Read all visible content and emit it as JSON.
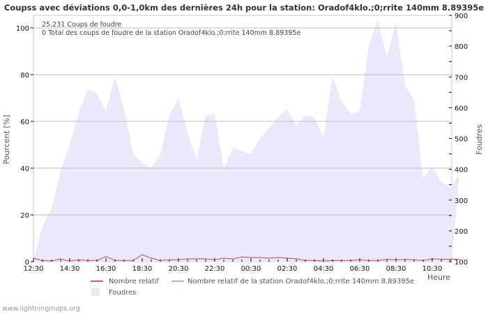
{
  "title": "Coupss avec déviations 0,0-1,0km des dernières 24h pour la station: Oradof4klo.;0;rrite 140mm 8.89395e",
  "info": {
    "line1": "25.231  Coups de foudre",
    "line2": "0 Total des coups de foudre de la station Oradof4klo.;0;rrite 140mm 8.89395e"
  },
  "axes": {
    "left_label": "Pourcent   [%]",
    "right_label": "Foudres",
    "x_label": "Heure",
    "left_ticks": [
      "0",
      "20",
      "40",
      "60",
      "80",
      "100"
    ],
    "right_ticks": [
      "100",
      "200",
      "300",
      "400",
      "500",
      "600",
      "700",
      "800",
      "900"
    ],
    "x_ticks": [
      "12:30",
      "14:30",
      "16:30",
      "18:30",
      "20:30",
      "22:30",
      "00:30",
      "02:30",
      "04:30",
      "06:30",
      "08:30",
      "10:30"
    ]
  },
  "legend": {
    "item1": "Nombre relatif",
    "item2": "Nombre relatif de la station Oradof4klo.;0;rrite 140mm 8.89395e",
    "item3": "Foudres"
  },
  "colors": {
    "area_fill": "#e9e9fb",
    "line_relative": "#d9566a",
    "line_station": "#f0a0a8",
    "grid": "#bbbbbb"
  },
  "watermark": "www.lightningmaps.org",
  "chart_data": {
    "type": "area",
    "title": "Coupss avec déviations 0,0-1,0km des dernières 24h pour la station: Oradof4klo.;0;rrite 140mm 8.89395e",
    "xlabel": "Heure",
    "ylabel": "Pourcent [%]",
    "ylabel_right": "Foudres",
    "ylim": [
      0,
      100
    ],
    "ylim_right": [
      100,
      900
    ],
    "grid": true,
    "legend_position": "bottom",
    "x": [
      "12:30",
      "13:00",
      "13:30",
      "14:00",
      "14:30",
      "15:00",
      "15:30",
      "16:00",
      "16:30",
      "17:00",
      "17:30",
      "18:00",
      "18:30",
      "19:00",
      "19:30",
      "20:00",
      "20:30",
      "21:00",
      "21:30",
      "22:00",
      "22:30",
      "23:00",
      "23:30",
      "00:00",
      "00:30",
      "01:00",
      "01:30",
      "02:00",
      "02:30",
      "03:00",
      "03:30",
      "04:00",
      "04:30",
      "05:00",
      "05:30",
      "06:00",
      "06:30",
      "07:00",
      "07:30",
      "08:00",
      "08:30",
      "09:00",
      "09:30",
      "10:00",
      "10:30",
      "11:00",
      "11:30",
      "12:00"
    ],
    "series": [
      {
        "name": "Foudres",
        "axis": "right",
        "type": "area",
        "values": [
          105,
          215,
          275,
          395,
          480,
          585,
          660,
          645,
          590,
          700,
          595,
          450,
          420,
          405,
          450,
          575,
          630,
          520,
          435,
          575,
          580,
          405,
          470,
          460,
          450,
          500,
          535,
          570,
          595,
          540,
          575,
          570,
          505,
          700,
          620,
          580,
          590,
          800,
          885,
          765,
          880,
          675,
          625,
          370,
          410,
          360,
          340,
          385
        ]
      },
      {
        "name": "Nombre relatif",
        "axis": "left",
        "type": "line",
        "values": [
          1.5,
          0.5,
          0.3,
          1.2,
          0.2,
          0.8,
          0.5,
          0.5,
          2.2,
          0.5,
          0.5,
          0.5,
          3.0,
          1.5,
          0.5,
          0.8,
          0.8,
          1.2,
          1.2,
          1.2,
          0.8,
          1.5,
          1.2,
          2.0,
          1.8,
          1.8,
          1.5,
          1.8,
          1.5,
          1.2,
          0.5,
          0.5,
          0.3,
          0.5,
          0.5,
          0.5,
          0.8,
          0.5,
          0.5,
          1.0,
          0.8,
          1.0,
          0.8,
          0.5,
          1.2,
          1.0,
          1.0,
          1.0
        ]
      },
      {
        "name": "Nombre relatif de la station Oradof4klo.;0;rrite 140mm 8.89395e",
        "axis": "left",
        "type": "line",
        "values": []
      }
    ]
  }
}
